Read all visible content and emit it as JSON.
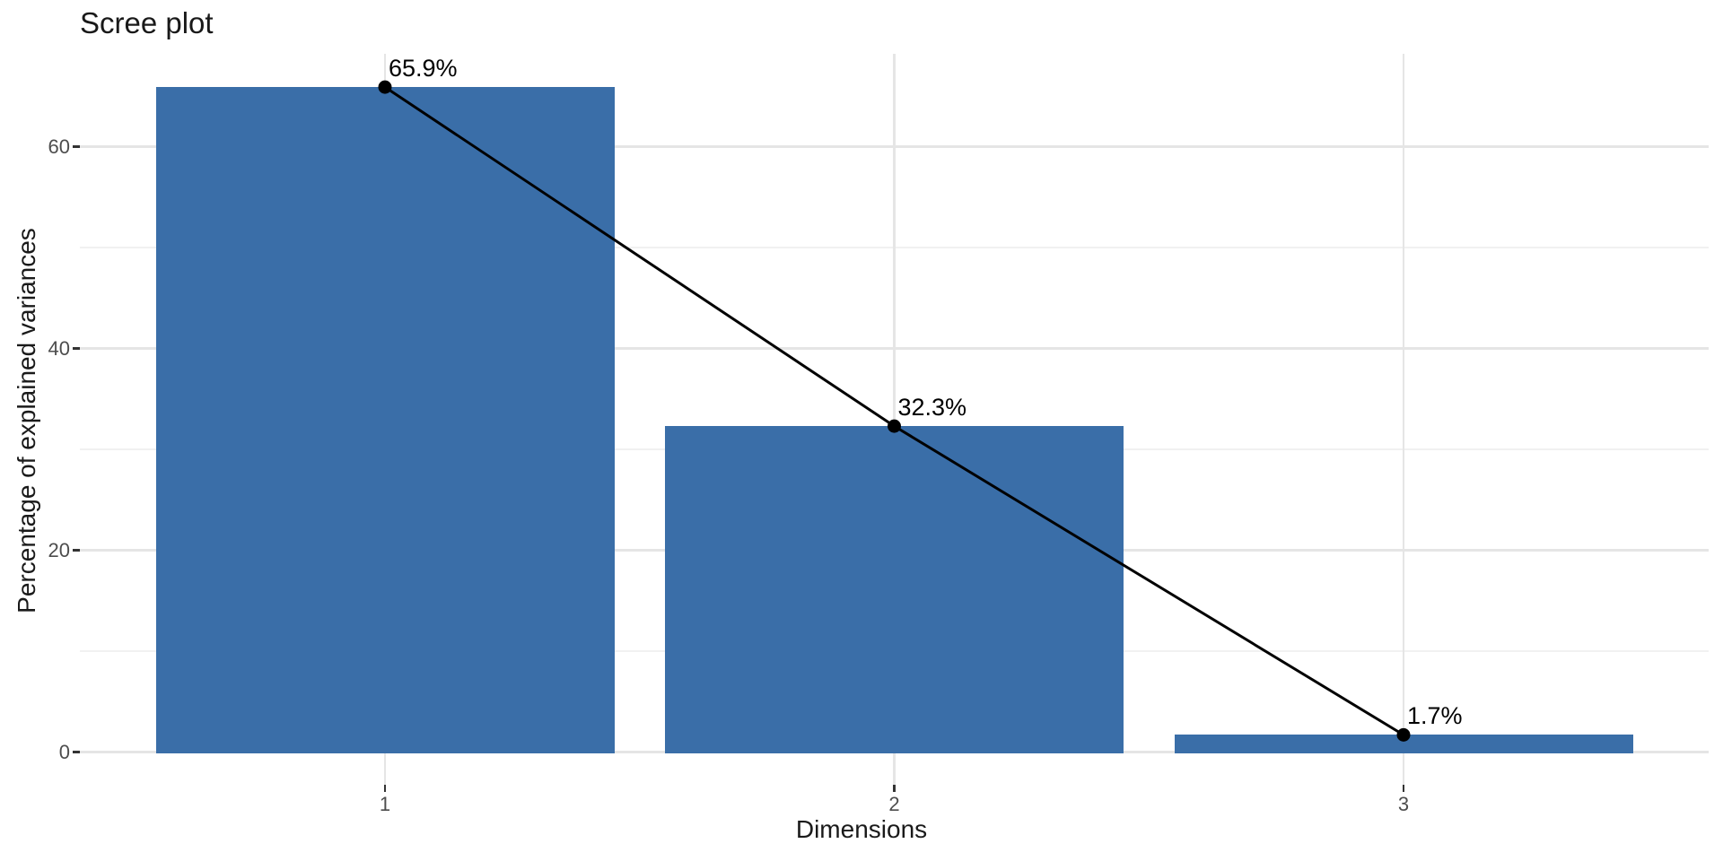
{
  "chart_data": {
    "type": "bar",
    "title": "Scree plot",
    "xlabel": "Dimensions",
    "ylabel": "Percentage of explained variances",
    "categories": [
      "1",
      "2",
      "3"
    ],
    "values": [
      65.9,
      32.3,
      1.7
    ],
    "point_labels": [
      "65.9%",
      "32.3%",
      "1.7%"
    ],
    "y_ticks": [
      0,
      20,
      40,
      60
    ],
    "y_minor_ticks": [
      10,
      30,
      50
    ],
    "ylim": [
      -3.3,
      69.2
    ],
    "grid": true,
    "legend": false,
    "overlay": {
      "type": "line",
      "marker": "circle"
    },
    "colors": {
      "bar_fill": "#3A6EA8",
      "line": "#000000",
      "point": "#000000",
      "grid_major": "#E5E5E5",
      "grid_minor": "#F1F1F1",
      "tick_mark": "#333333",
      "tick_label": "#4D4D4D",
      "axis_title": "#1A1A1A",
      "title": "#191919",
      "background": "#FFFFFF"
    }
  }
}
